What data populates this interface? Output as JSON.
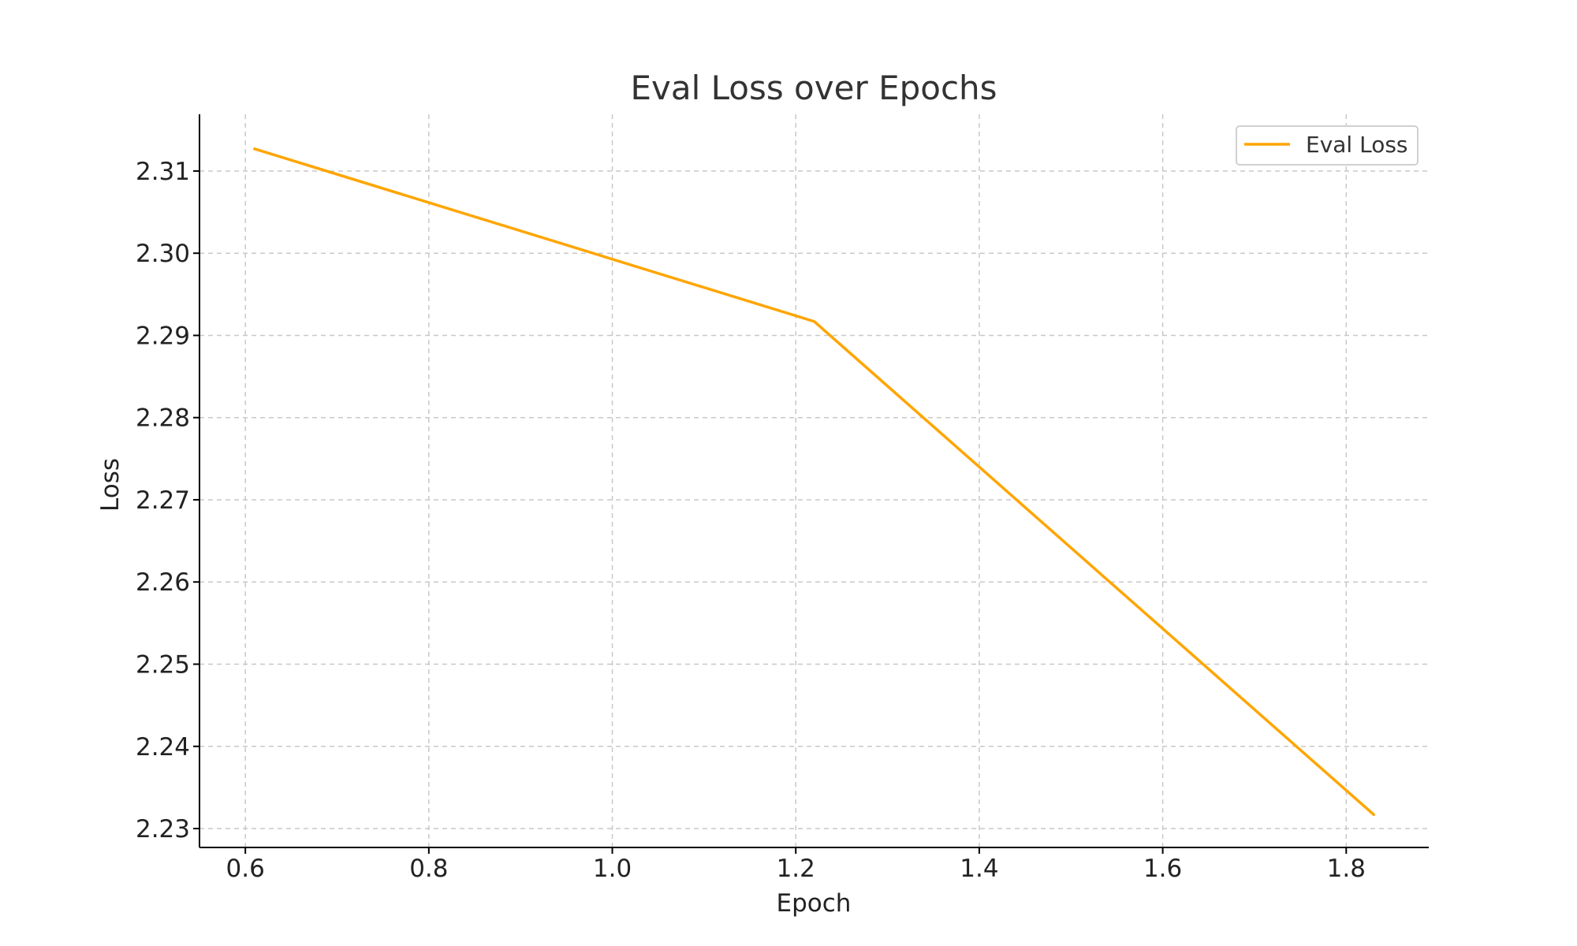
{
  "chart_data": {
    "type": "line",
    "title": "Eval Loss over Epochs",
    "xlabel": "Epoch",
    "ylabel": "Loss",
    "xlim": [
      0.55,
      1.89
    ],
    "ylim": [
      2.2277,
      2.3169
    ],
    "x_ticks": [
      0.6,
      0.8,
      1.0,
      1.2,
      1.4,
      1.6,
      1.8
    ],
    "x_tick_labels": [
      "0.6",
      "0.8",
      "1.0",
      "1.2",
      "1.4",
      "1.6",
      "1.8"
    ],
    "y_ticks": [
      2.23,
      2.24,
      2.25,
      2.26,
      2.27,
      2.28,
      2.29,
      2.3,
      2.31
    ],
    "y_tick_labels": [
      "2.23",
      "2.24",
      "2.25",
      "2.26",
      "2.27",
      "2.28",
      "2.29",
      "2.30",
      "2.31"
    ],
    "grid": true,
    "legend": {
      "position": "top-right",
      "entries": [
        "Eval Loss"
      ]
    },
    "series": [
      {
        "name": "Eval Loss",
        "color": "#FFA500",
        "x": [
          0.61,
          1.22,
          1.83
        ],
        "y": [
          2.3127,
          2.2917,
          2.2317
        ]
      }
    ]
  }
}
